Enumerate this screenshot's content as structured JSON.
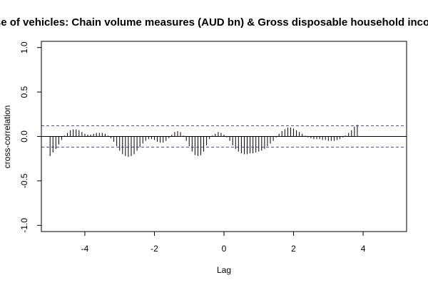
{
  "chart_data": {
    "type": "bar",
    "title": "ase of vehicles: Chain volume measures (AUD bn) & Gross disposable household incom",
    "xlabel": "Lag",
    "ylabel": "cross-correlation",
    "xlim": [
      -5.25,
      5.25
    ],
    "ylim": [
      -1.07,
      1.07
    ],
    "x_ticks": [
      -4,
      -2,
      0,
      2,
      4
    ],
    "x_tick_labels": [
      "-4",
      "-2",
      "0",
      "2",
      "4"
    ],
    "y_ticks": [
      -1.0,
      -0.5,
      0.0,
      0.5,
      1.0
    ],
    "y_tick_labels": [
      "-1.0",
      "-0.5",
      "0.0",
      "0.5",
      "1.0"
    ],
    "confidence_band": 0.12,
    "colors": {
      "bars": "#000000",
      "confidence": "#4a4adf",
      "zero_line": "#000000"
    },
    "lag_start": -5,
    "lag_step": 0.0833333,
    "values": [
      -0.22,
      -0.18,
      -0.14,
      -0.09,
      -0.04,
      0.01,
      0.04,
      0.07,
      0.08,
      0.08,
      0.07,
      0.05,
      0.03,
      0.02,
      0.02,
      0.03,
      0.04,
      0.04,
      0.04,
      0.03,
      0.01,
      -0.02,
      -0.06,
      -0.11,
      -0.16,
      -0.2,
      -0.22,
      -0.23,
      -0.22,
      -0.2,
      -0.16,
      -0.12,
      -0.08,
      -0.05,
      -0.03,
      -0.03,
      -0.04,
      -0.06,
      -0.07,
      -0.07,
      -0.05,
      -0.02,
      0.02,
      0.05,
      0.06,
      0.05,
      0.01,
      -0.05,
      -0.11,
      -0.17,
      -0.21,
      -0.22,
      -0.21,
      -0.17,
      -0.1,
      -0.03,
      0.01,
      0.03,
      0.05,
      0.04,
      0.02,
      -0.01,
      -0.05,
      -0.1,
      -0.14,
      -0.17,
      -0.19,
      -0.2,
      -0.2,
      -0.19,
      -0.19,
      -0.18,
      -0.17,
      -0.16,
      -0.14,
      -0.11,
      -0.08,
      -0.05,
      -0.01,
      0.03,
      0.06,
      0.08,
      0.1,
      0.1,
      0.09,
      0.07,
      0.05,
      0.03,
      0.01,
      -0.01,
      -0.02,
      -0.03,
      -0.03,
      -0.03,
      -0.04,
      -0.04,
      -0.05,
      -0.05,
      -0.05,
      -0.04,
      -0.03,
      -0.01,
      0.01,
      0.04,
      0.07,
      0.11,
      0.13
    ]
  }
}
